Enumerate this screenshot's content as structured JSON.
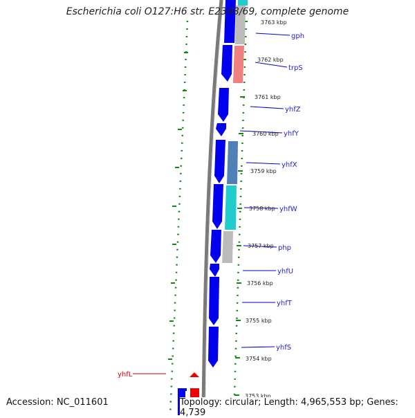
{
  "title": "Escherichia coli O127:H6 str. E2348/69, complete genome",
  "accession": "Accession: NC_011601",
  "topology": "Topology: circular; Length: 4,965,553 bp; Genes: 4,739",
  "colors": {
    "cds": "#0000ee",
    "cds_highlight": "#ee0000",
    "backbone": "#777777",
    "tick": "#118811",
    "label": "#2222cc",
    "trpS_feature": "#ee8080",
    "yhfX_feature": "#4f81b8",
    "yhfW_feature": "#22cccc",
    "gray_feature": "#bbbbbb"
  },
  "scale_labels": [
    "3763 kbp",
    "3762 kbp",
    "3761 kbp",
    "3760 kbp",
    "3759 kbp",
    "3758 kbp",
    "3757 kbp",
    "3756 kbp",
    "3755 kbp",
    "3754 kbp",
    "3753 kbp"
  ],
  "gene_labels": [
    "gph",
    "trpS",
    "yhfZ",
    "yhfY",
    "yhfX",
    "yhfW",
    "php",
    "yhfU",
    "yhfT",
    "yhfS",
    "yhfL"
  ]
}
